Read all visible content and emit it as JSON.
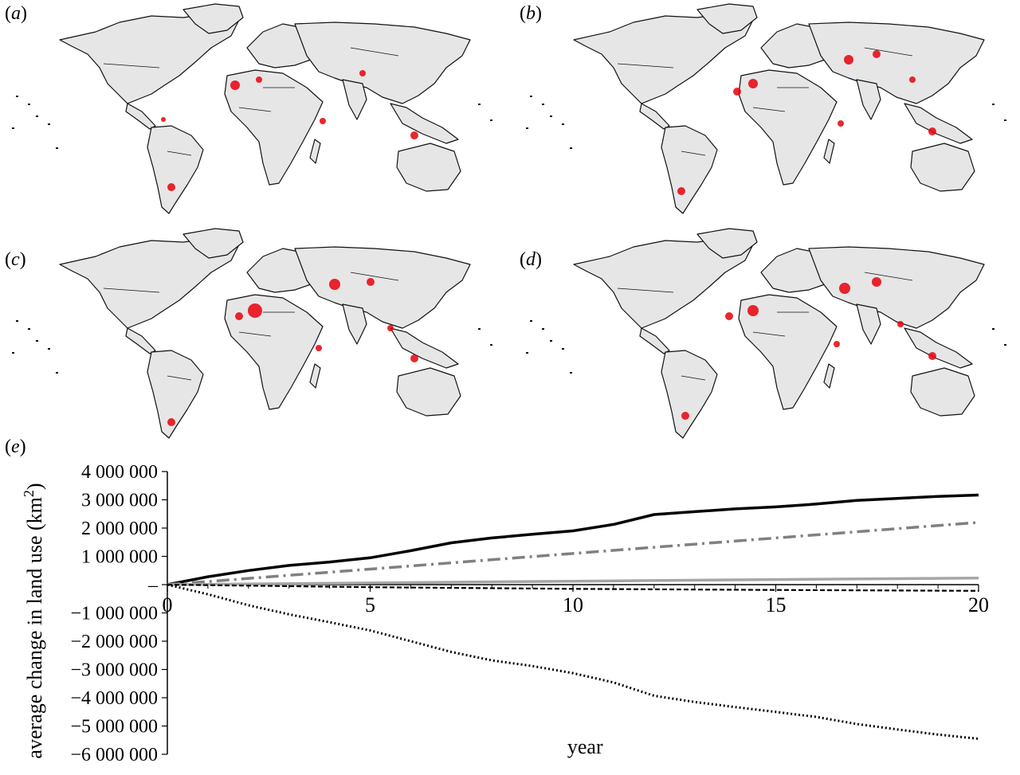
{
  "panels": {
    "a": "a",
    "b": "b",
    "c": "c",
    "d": "d",
    "e": "e"
  },
  "colors": {
    "land": "#e6e6e6",
    "border": "#111111",
    "hotspot": "#e8000b",
    "solid_black": "#000000",
    "dashdot_grey": "#808080",
    "solid_grey": "#a6a6a6",
    "dashed_black": "#000000",
    "dotted_black": "#000000"
  },
  "chart_data": {
    "type": "line",
    "xlabel": "year",
    "ylabel": "average change in land use (km",
    "ylabel_sup": "2",
    "ylabel_close": ")",
    "xlim": [
      0,
      20
    ],
    "ylim": [
      -6000000,
      4000000
    ],
    "xticks": [
      0,
      5,
      10,
      15,
      20
    ],
    "xtick_labels": [
      "0",
      "5",
      "10",
      "15",
      "20"
    ],
    "yticks": [
      4000000,
      3000000,
      2000000,
      1000000,
      0,
      -1000000,
      -2000000,
      -3000000,
      -4000000,
      -5000000,
      -6000000
    ],
    "ytick_labels": [
      "4 000 000",
      "3 000 000",
      "2 000 000",
      "1 000 000",
      "–",
      "−1 000 000",
      "−2 000 000",
      "−3 000 000",
      "−4 000 000",
      "−5 000 000",
      "−6 000 000"
    ],
    "grid": false,
    "series": [
      {
        "style": "solid-black",
        "x": [
          0,
          1,
          2,
          3,
          4,
          5,
          6,
          7,
          8,
          9,
          10,
          11,
          12,
          13,
          14,
          15,
          16,
          17,
          18,
          19,
          20
        ],
        "y": [
          0,
          280000,
          500000,
          680000,
          800000,
          950000,
          1200000,
          1480000,
          1650000,
          1780000,
          1900000,
          2130000,
          2480000,
          2580000,
          2680000,
          2750000,
          2850000,
          2980000,
          3050000,
          3120000,
          3170000
        ]
      },
      {
        "style": "dashdot-grey",
        "x": [
          0,
          5,
          10,
          15,
          20
        ],
        "y": [
          0,
          550000,
          1100000,
          1650000,
          2200000
        ]
      },
      {
        "style": "solid-grey",
        "x": [
          0,
          5,
          10,
          15,
          20
        ],
        "y": [
          0,
          60000,
          120000,
          180000,
          230000
        ]
      },
      {
        "style": "dashed-black",
        "x": [
          0,
          5,
          10,
          15,
          20
        ],
        "y": [
          0,
          -90000,
          -150000,
          -190000,
          -220000
        ]
      },
      {
        "style": "dotted-black",
        "x": [
          0,
          1,
          2,
          3,
          4,
          5,
          6,
          7,
          8,
          9,
          10,
          11,
          12,
          13,
          14,
          15,
          16,
          17,
          18,
          19,
          20
        ],
        "y": [
          0,
          -340000,
          -730000,
          -1050000,
          -1330000,
          -1620000,
          -2000000,
          -2380000,
          -2680000,
          -2880000,
          -3130000,
          -3460000,
          -3930000,
          -4150000,
          -4330000,
          -4500000,
          -4680000,
          -4930000,
          -5120000,
          -5300000,
          -5450000
        ]
      }
    ]
  }
}
